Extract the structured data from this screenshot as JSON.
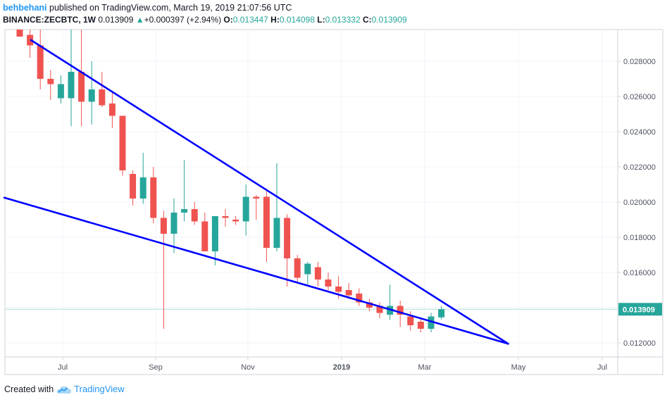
{
  "header": {
    "author": "behbehani",
    "published_text": "published on TradingView.com, March 19, 2019 21:07:56 UTC",
    "symbol": "BINANCE:ZECBTC, 1W",
    "last": "0.013909",
    "change_arrow": "▲",
    "change": "+0.000397 (+2.94%)",
    "o_label": "O:",
    "o_value": "0.013447",
    "h_label": "H:",
    "h_value": "0.014098",
    "l_label": "L:",
    "l_value": "0.013332",
    "c_label": "C:",
    "c_value": "0.013909"
  },
  "footer": {
    "created_with": "Created with",
    "brand": "TradingView",
    "logo_icon": "tradingview-cloud-icon"
  },
  "colors": {
    "up": "#26a69a",
    "down": "#ef5350",
    "trendline": "#0000ff",
    "price_badge": "#26a69a",
    "price_line": "#b2dfdb"
  },
  "chart_data": {
    "type": "candlestick",
    "interval": "1W",
    "x_tick_labels": [
      "Jul",
      "Sep",
      "Nov",
      "2019",
      "Mar",
      "May",
      "Jul"
    ],
    "y_tick_labels": [
      "0.012000",
      "0.014000",
      "0.016000",
      "0.018000",
      "0.020000",
      "0.022000",
      "0.024000",
      "0.026000",
      "0.028000"
    ],
    "ylim": [
      0.0112,
      0.0298
    ],
    "last_price_label": "0.013909",
    "candles": [
      {
        "o": 0.03,
        "h": 0.03,
        "l": 0.0294,
        "c": 0.0294
      },
      {
        "o": 0.0295,
        "h": 0.0298,
        "l": 0.0282,
        "c": 0.0289
      },
      {
        "o": 0.0289,
        "h": 0.0298,
        "l": 0.0264,
        "c": 0.027
      },
      {
        "o": 0.027,
        "h": 0.0275,
        "l": 0.0258,
        "c": 0.0267
      },
      {
        "o": 0.0259,
        "h": 0.0272,
        "l": 0.0256,
        "c": 0.0267
      },
      {
        "o": 0.0259,
        "h": 0.03,
        "l": 0.0243,
        "c": 0.0274
      },
      {
        "o": 0.0274,
        "h": 0.03,
        "l": 0.0243,
        "c": 0.0257
      },
      {
        "o": 0.0257,
        "h": 0.028,
        "l": 0.0244,
        "c": 0.0264
      },
      {
        "o": 0.0264,
        "h": 0.0274,
        "l": 0.0254,
        "c": 0.0255
      },
      {
        "o": 0.0256,
        "h": 0.0262,
        "l": 0.0242,
        "c": 0.0249
      },
      {
        "o": 0.0249,
        "h": 0.0249,
        "l": 0.0215,
        "c": 0.0218
      },
      {
        "o": 0.0216,
        "h": 0.0218,
        "l": 0.0198,
        "c": 0.0202
      },
      {
        "o": 0.0202,
        "h": 0.0228,
        "l": 0.0199,
        "c": 0.0214
      },
      {
        "o": 0.0214,
        "h": 0.022,
        "l": 0.0188,
        "c": 0.0191
      },
      {
        "o": 0.0191,
        "h": 0.0195,
        "l": 0.0128,
        "c": 0.0182
      },
      {
        "o": 0.0182,
        "h": 0.0202,
        "l": 0.0171,
        "c": 0.0194
      },
      {
        "o": 0.0194,
        "h": 0.0224,
        "l": 0.0189,
        "c": 0.0196
      },
      {
        "o": 0.0196,
        "h": 0.02,
        "l": 0.0187,
        "c": 0.0189
      },
      {
        "o": 0.0189,
        "h": 0.0194,
        "l": 0.0172,
        "c": 0.0172
      },
      {
        "o": 0.0172,
        "h": 0.0192,
        "l": 0.0164,
        "c": 0.0192
      },
      {
        "o": 0.0192,
        "h": 0.0196,
        "l": 0.0186,
        "c": 0.0191
      },
      {
        "o": 0.019,
        "h": 0.0192,
        "l": 0.0187,
        "c": 0.0189
      },
      {
        "o": 0.0189,
        "h": 0.021,
        "l": 0.0181,
        "c": 0.0203
      },
      {
        "o": 0.0203,
        "h": 0.0204,
        "l": 0.019,
        "c": 0.0202
      },
      {
        "o": 0.0203,
        "h": 0.0207,
        "l": 0.0166,
        "c": 0.0174
      },
      {
        "o": 0.0174,
        "h": 0.0222,
        "l": 0.0172,
        "c": 0.0191
      },
      {
        "o": 0.0191,
        "h": 0.0193,
        "l": 0.0152,
        "c": 0.0168
      },
      {
        "o": 0.0168,
        "h": 0.017,
        "l": 0.0154,
        "c": 0.0157
      },
      {
        "o": 0.0159,
        "h": 0.0166,
        "l": 0.0152,
        "c": 0.0165
      },
      {
        "o": 0.0163,
        "h": 0.0166,
        "l": 0.0152,
        "c": 0.0156
      },
      {
        "o": 0.0156,
        "h": 0.016,
        "l": 0.015,
        "c": 0.0152
      },
      {
        "o": 0.0152,
        "h": 0.0158,
        "l": 0.0145,
        "c": 0.0149
      },
      {
        "o": 0.015,
        "h": 0.0154,
        "l": 0.0145,
        "c": 0.0147
      },
      {
        "o": 0.0148,
        "h": 0.0151,
        "l": 0.0141,
        "c": 0.0143
      },
      {
        "o": 0.0143,
        "h": 0.0145,
        "l": 0.0138,
        "c": 0.014
      },
      {
        "o": 0.0141,
        "h": 0.0143,
        "l": 0.0134,
        "c": 0.0137
      },
      {
        "o": 0.0136,
        "h": 0.0153,
        "l": 0.0133,
        "c": 0.0141
      },
      {
        "o": 0.0141,
        "h": 0.0144,
        "l": 0.0129,
        "c": 0.0136
      },
      {
        "o": 0.0135,
        "h": 0.0138,
        "l": 0.0127,
        "c": 0.013
      },
      {
        "o": 0.0132,
        "h": 0.0134,
        "l": 0.0126,
        "c": 0.0128
      },
      {
        "o": 0.0128,
        "h": 0.0137,
        "l": 0.0126,
        "c": 0.0135
      },
      {
        "o": 0.01345,
        "h": 0.0141,
        "l": 0.01333,
        "c": 0.01391
      }
    ],
    "trendlines": [
      {
        "from": {
          "bar": 1.1,
          "price": 0.0292
        },
        "to": {
          "bar": 47.5,
          "price": 0.01195
        }
      },
      {
        "from": {
          "bar": -1.5,
          "price": 0.02025
        },
        "to": {
          "bar": 47.5,
          "price": 0.01195
        }
      }
    ]
  }
}
